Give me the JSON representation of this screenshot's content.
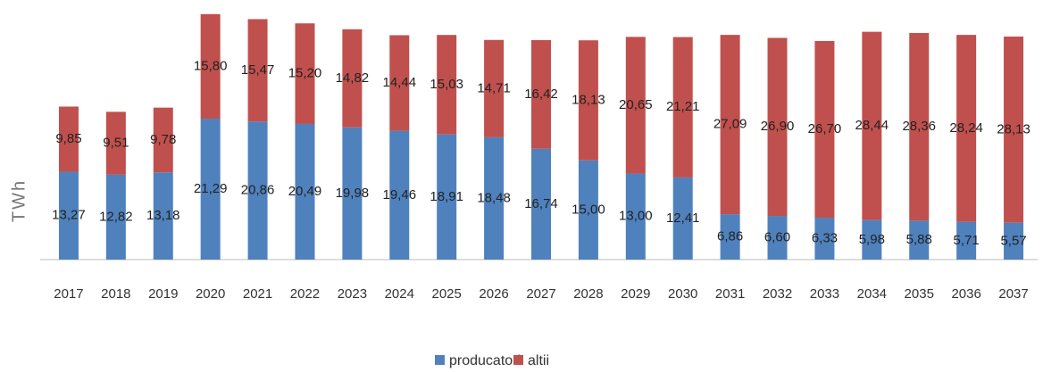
{
  "chart_data": {
    "type": "stacked_bar",
    "y_label": "TWh",
    "categories": [
      "2017",
      "2018",
      "2019",
      "2020",
      "2021",
      "2022",
      "2023",
      "2024",
      "2025",
      "2026",
      "2027",
      "2028",
      "2029",
      "2030",
      "2031",
      "2032",
      "2033",
      "2034",
      "2035",
      "2036",
      "2037"
    ],
    "series": [
      {
        "name": "producatori",
        "color": "#4f81bd",
        "values": [
          13.27,
          12.82,
          13.18,
          21.29,
          20.86,
          20.49,
          19.98,
          19.46,
          18.91,
          18.48,
          16.74,
          15.0,
          13.0,
          12.41,
          6.86,
          6.6,
          6.33,
          5.98,
          5.88,
          5.71,
          5.57
        ],
        "value_labels": [
          "13,27",
          "12,82",
          "13,18",
          "21,29",
          "20,86",
          "20,49",
          "19,98",
          "19,46",
          "18,91",
          "18,48",
          "16,74",
          "15,00",
          "13,00",
          "12,41",
          "6,86",
          "6,60",
          "6,33",
          "5,98",
          "5,88",
          "5,71",
          "5,57"
        ]
      },
      {
        "name": "altii",
        "color": "#c0504d",
        "values": [
          9.85,
          9.51,
          9.78,
          15.8,
          15.47,
          15.2,
          14.82,
          14.44,
          15.03,
          14.71,
          16.42,
          18.13,
          20.65,
          21.21,
          27.09,
          26.9,
          26.7,
          28.44,
          28.36,
          28.24,
          28.13
        ],
        "value_labels": [
          "9,85",
          "9,51",
          "9,78",
          "15,80",
          "15,47",
          "15,20",
          "14,82",
          "14,44",
          "15,03",
          "14,71",
          "16,42",
          "18,13",
          "20,65",
          "21,21",
          "27,09",
          "26,90",
          "26,70",
          "28,44",
          "28,36",
          "28,24",
          "28,13"
        ]
      }
    ],
    "ylim": [
      0,
      37.2
    ],
    "legend": "bottom"
  }
}
